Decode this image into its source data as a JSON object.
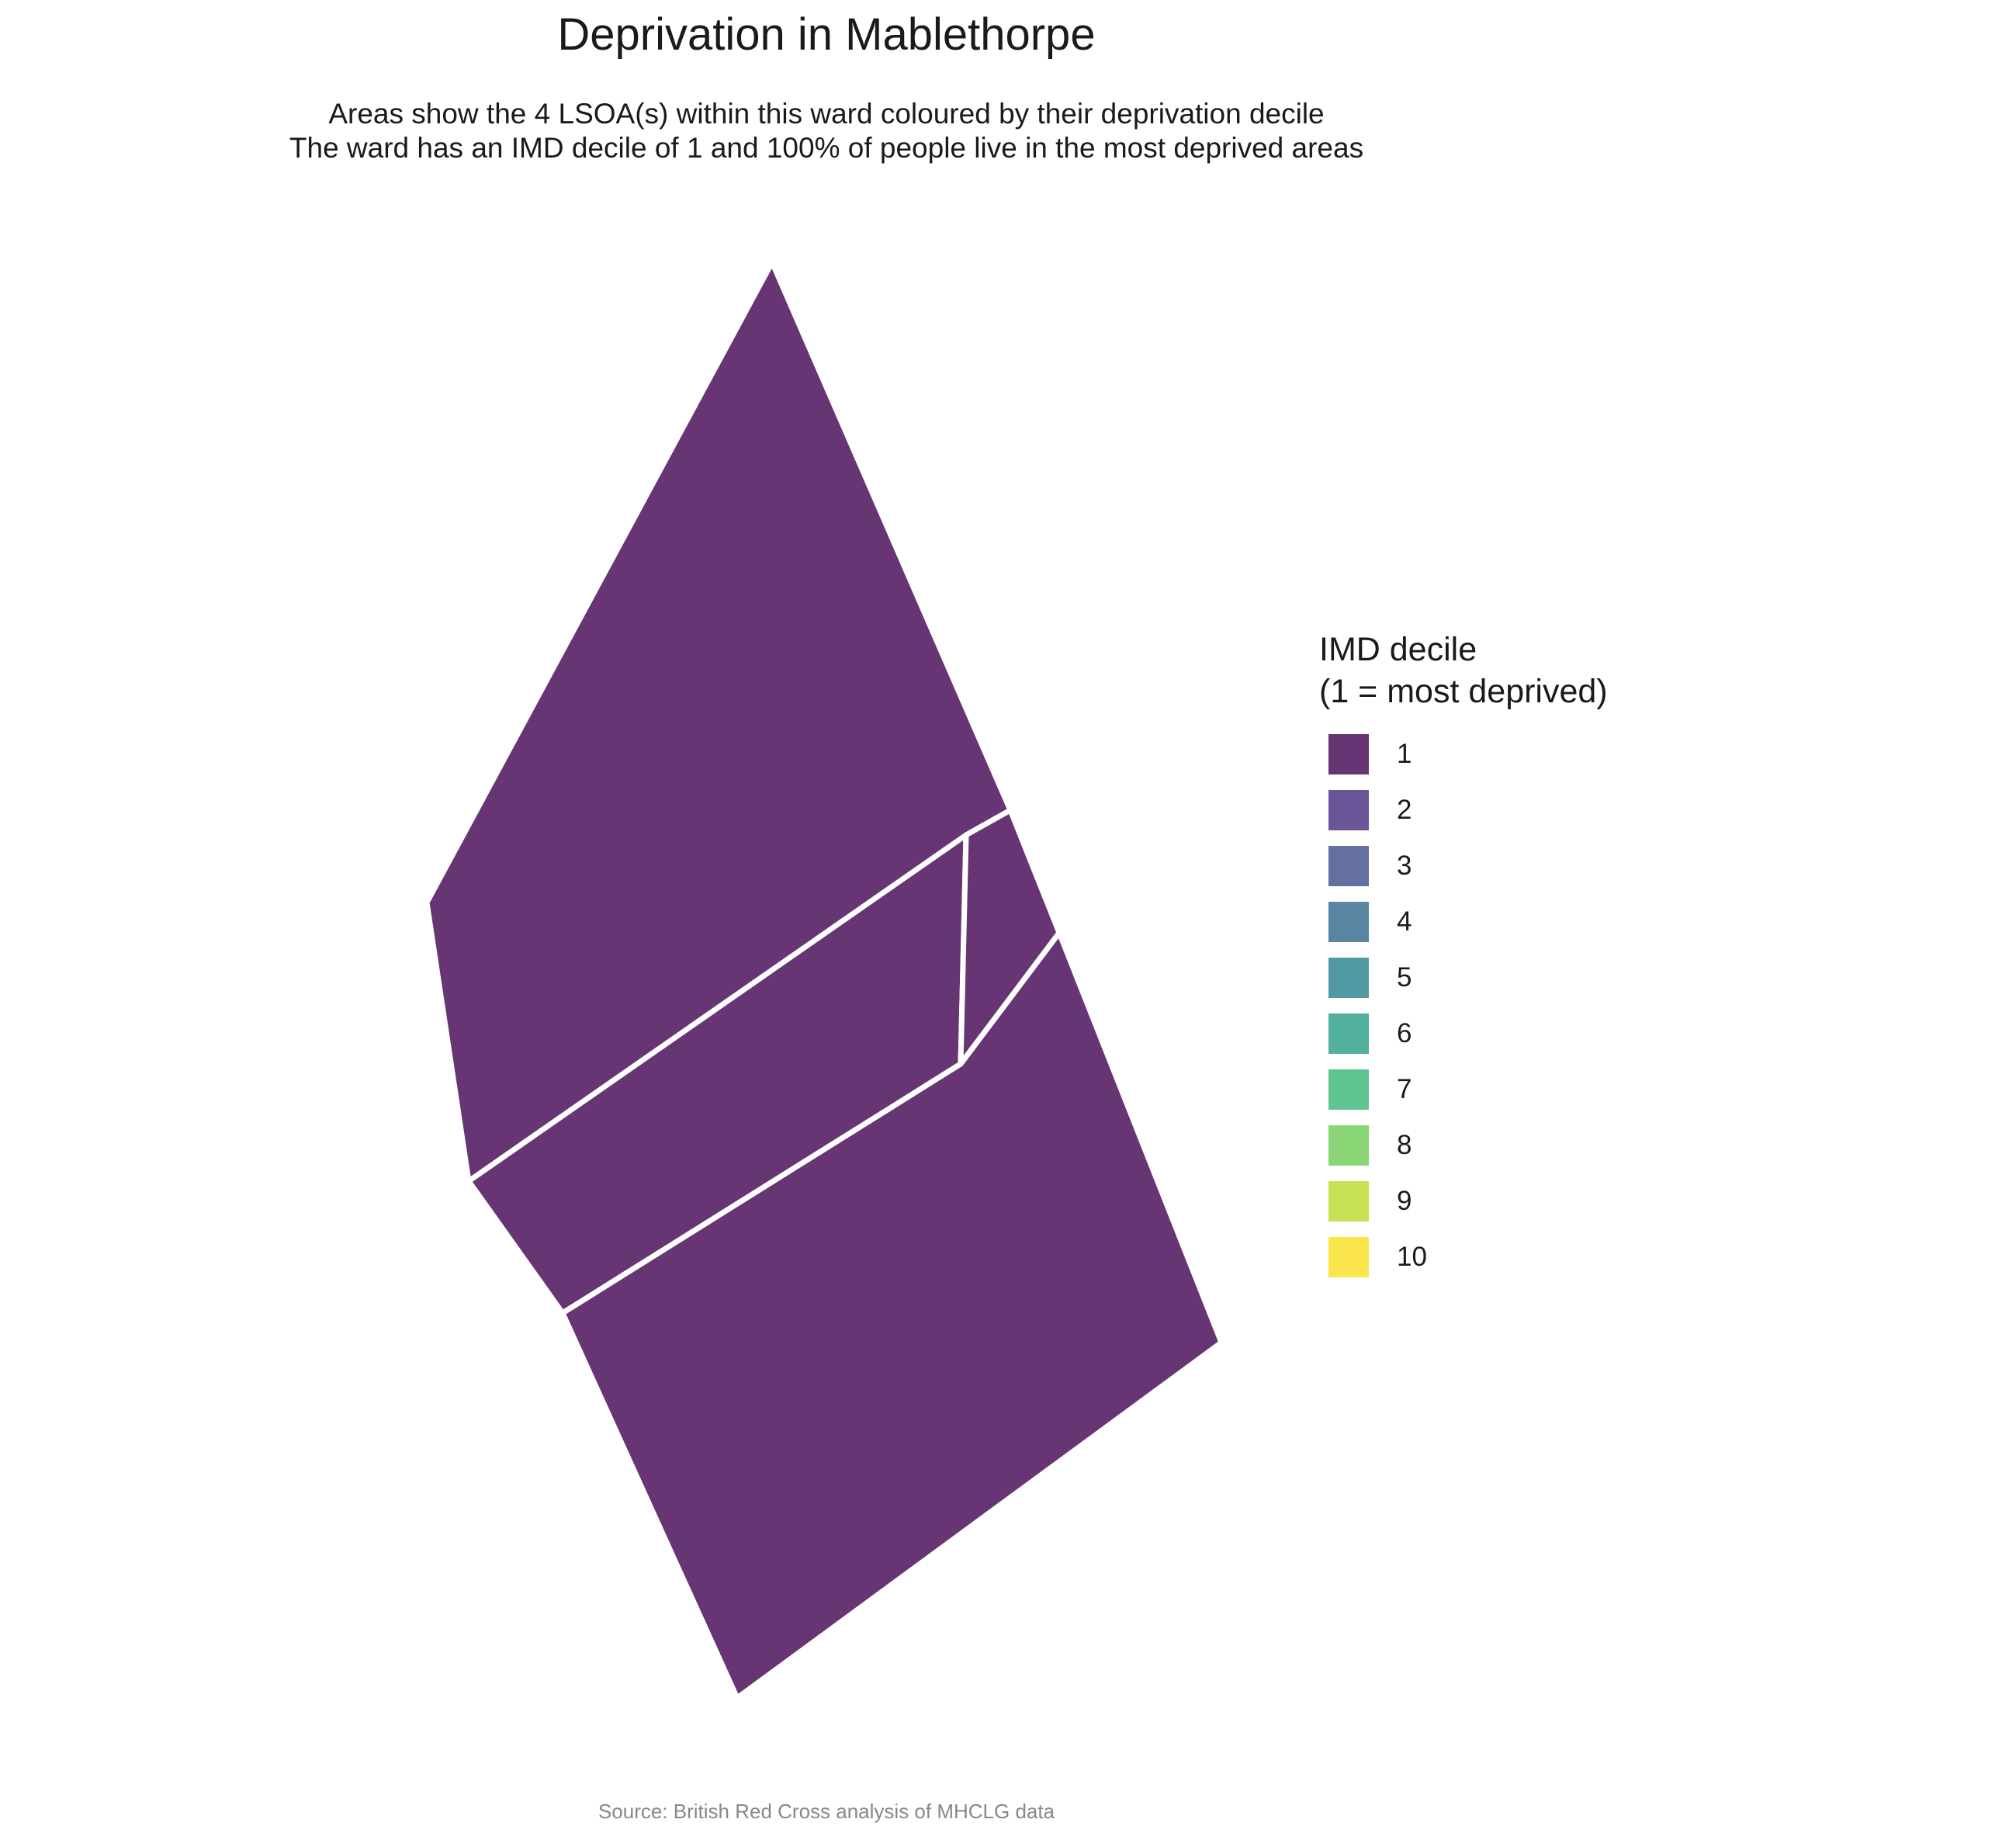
{
  "title": "Deprivation in Mablethorpe",
  "subtitle_line1": "Areas show the 4 LSOA(s) within this ward coloured by their deprivation decile",
  "subtitle_line2": "The ward has an IMD decile of 1 and 100% of people live in the most deprived areas",
  "caption": "Source: British Red Cross analysis of MHCLG data",
  "fill_color": "#673573",
  "border_color": "#ffffff",
  "legend": {
    "title_line1": "IMD decile",
    "title_line2": "(1 = most deprived)",
    "items": [
      {
        "label": "1",
        "color": "#673573"
      },
      {
        "label": "2",
        "color": "#6a5598"
      },
      {
        "label": "3",
        "color": "#6470a2"
      },
      {
        "label": "4",
        "color": "#5985a3"
      },
      {
        "label": "5",
        "color": "#529aa1"
      },
      {
        "label": "6",
        "color": "#52b09e"
      },
      {
        "label": "7",
        "color": "#5ec490"
      },
      {
        "label": "8",
        "color": "#8ad576"
      },
      {
        "label": "9",
        "color": "#c6e254"
      },
      {
        "label": "10",
        "color": "#fbe54d"
      }
    ]
  },
  "areas": [
    {
      "id": "lsoa-north",
      "decile": 1
    },
    {
      "id": "lsoa-middle",
      "decile": 1
    },
    {
      "id": "lsoa-small-east",
      "decile": 1
    },
    {
      "id": "lsoa-south",
      "decile": 1
    }
  ]
}
